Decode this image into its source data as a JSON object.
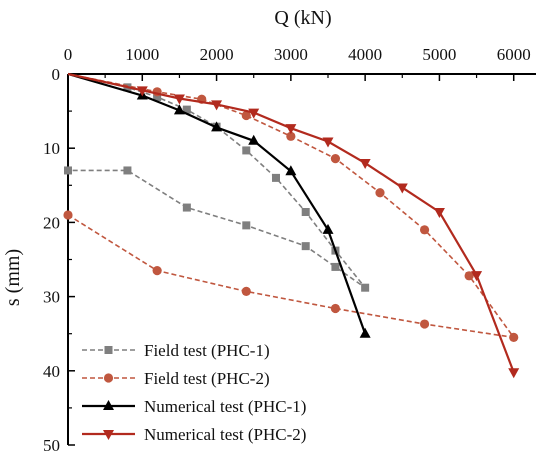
{
  "chart_data": {
    "type": "line",
    "title": "",
    "xlabel": "Q (kN)",
    "ylabel": "s (mm)",
    "x_axis_position": "top",
    "y_axis_inverted": true,
    "xlim": [
      0,
      6300
    ],
    "ylim": [
      0,
      50
    ],
    "x_ticks": [
      "0",
      "1000",
      "2000",
      "3000",
      "4000",
      "5000",
      "6000"
    ],
    "y_ticks": [
      "0",
      "10",
      "20",
      "30",
      "40",
      "50"
    ],
    "grid": false,
    "legend_position": "bottom-left",
    "series": [
      {
        "name": "Field test (PHC-1)",
        "line_style": "dashed",
        "marker": "square",
        "color": "#7f7f7f",
        "x": [
          0,
          800,
          1200,
          1600,
          2000,
          2400,
          2800,
          3200,
          3600,
          4000,
          3600,
          3200,
          2400,
          1600,
          800,
          0
        ],
        "y": [
          0,
          1.8,
          3.1,
          4.8,
          7.1,
          10.3,
          14.0,
          18.6,
          23.8,
          28.8,
          26.0,
          23.2,
          20.4,
          18.0,
          13.0,
          13.0
        ]
      },
      {
        "name": "Field test (PHC-2)",
        "line_style": "dashed",
        "marker": "circle",
        "color": "#c0573f",
        "x": [
          0,
          1200,
          1800,
          2400,
          3000,
          3600,
          4200,
          4800,
          5400,
          6000,
          4800,
          3600,
          2400,
          1200,
          0
        ],
        "y": [
          0,
          2.4,
          3.4,
          5.6,
          8.4,
          11.4,
          16.0,
          21.0,
          27.2,
          35.5,
          33.7,
          31.6,
          29.3,
          26.5,
          19.0
        ]
      },
      {
        "name": "Numerical test (PHC-1)",
        "line_style": "solid",
        "marker": "triangle-up",
        "color": "#000000",
        "x": [
          0,
          1000,
          1500,
          2000,
          2500,
          3000,
          3500,
          4000
        ],
        "y": [
          0,
          2.9,
          4.9,
          7.2,
          9.0,
          13.1,
          21.0,
          35.0
        ]
      },
      {
        "name": "Numerical test (PHC-2)",
        "line_style": "solid",
        "marker": "triangle-down",
        "color": "#b22a1e",
        "x": [
          0,
          1000,
          1500,
          2000,
          2500,
          3000,
          3500,
          4000,
          4500,
          5000,
          5500,
          6000
        ],
        "y": [
          0,
          2.2,
          3.3,
          4.1,
          5.2,
          7.3,
          9.1,
          12.0,
          15.3,
          18.6,
          27.1,
          40.2
        ]
      }
    ]
  }
}
